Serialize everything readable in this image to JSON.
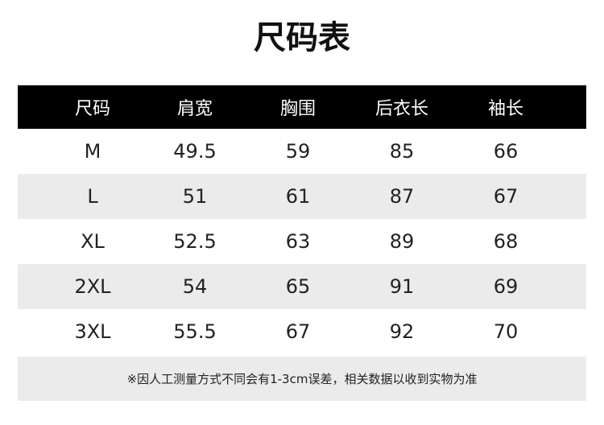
{
  "title": "尺码表",
  "headers": [
    "尺码",
    "肩宽",
    "胸围",
    "后衣长",
    "袖长"
  ],
  "rows": [
    [
      "M",
      "49.5",
      "59",
      "85",
      "66"
    ],
    [
      "L",
      "51",
      "61",
      "87",
      "67"
    ],
    [
      "XL",
      "52.5",
      "63",
      "89",
      "68"
    ],
    [
      "2XL",
      "54",
      "65",
      "91",
      "69"
    ],
    [
      "3XL",
      "55.5",
      "67",
      "92",
      "70"
    ]
  ],
  "note": "※因人工测量方式不同会有1-3cm误差，相关数据以收到实物为准"
}
